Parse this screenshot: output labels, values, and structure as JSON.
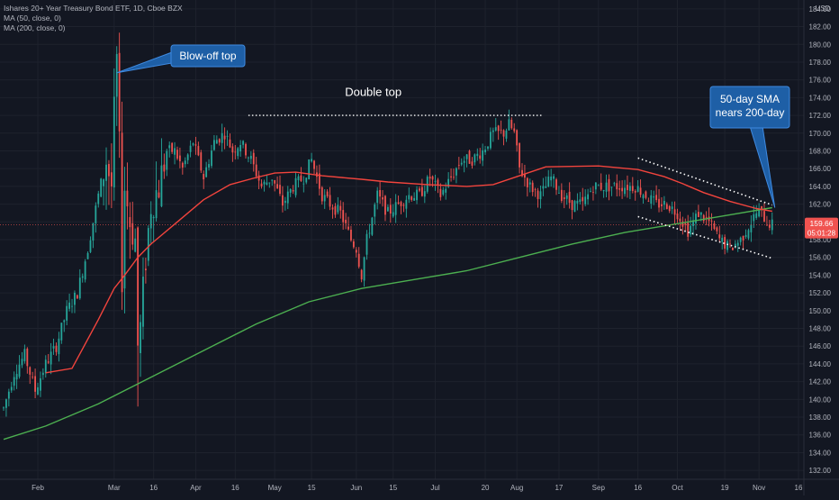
{
  "legend": {
    "title": "Ishares 20+ Year Treasury Bond ETF, 1D, Cboe BZX",
    "ma50": "MA (50, close, 0)",
    "ma200": "MA (200, close, 0)"
  },
  "currency": "USD",
  "price_tag": {
    "price": "159.66",
    "countdown": "05:01:28"
  },
  "colors": {
    "background": "#131722",
    "grid": "#1e222d",
    "up": "#26a69a",
    "down": "#ef5350",
    "ma50": "#f2443d",
    "ma200": "#4caf50",
    "callout": "#1e5fa6",
    "callout_border": "#3f8ae0",
    "price_tag": "#f05350"
  },
  "chart_data": {
    "type": "candlestick",
    "symbol": "Ishares 20+ Year Treasury Bond ETF",
    "timeframe": "1D",
    "exchange": "Cboe BZX",
    "y_ticks": [
      "132.00",
      "134.00",
      "136.00",
      "138.00",
      "140.00",
      "142.00",
      "144.00",
      "146.00",
      "148.00",
      "150.00",
      "152.00",
      "154.00",
      "156.00",
      "158.00",
      "160.00",
      "162.00",
      "164.00",
      "166.00",
      "168.00",
      "170.00",
      "172.00",
      "174.00",
      "176.00",
      "178.00",
      "180.00",
      "182.00",
      "184.00"
    ],
    "ylim": [
      131,
      185
    ],
    "x_ticks": [
      {
        "label": "Feb",
        "day": 27
      },
      {
        "label": "Mar",
        "day": 56
      },
      {
        "label": "16",
        "day": 71
      },
      {
        "label": "Apr",
        "day": 87
      },
      {
        "label": "16",
        "day": 102
      },
      {
        "label": "May",
        "day": 117
      },
      {
        "label": "15",
        "day": 131
      },
      {
        "label": "Jun",
        "day": 148
      },
      {
        "label": "15",
        "day": 162
      },
      {
        "label": "Jul",
        "day": 178
      },
      {
        "label": "20",
        "day": 197
      },
      {
        "label": "Aug",
        "day": 209
      },
      {
        "label": "17",
        "day": 225
      },
      {
        "label": "Sep",
        "day": 240
      },
      {
        "label": "16",
        "day": 255
      },
      {
        "label": "Oct",
        "day": 270
      },
      {
        "label": "19",
        "day": 288
      },
      {
        "label": "Nov",
        "day": 301
      },
      {
        "label": "16",
        "day": 316
      }
    ],
    "x_domain": [
      14,
      316
    ],
    "price_path": [
      [
        14,
        139
      ],
      [
        18,
        143
      ],
      [
        22,
        145
      ],
      [
        26,
        141
      ],
      [
        30,
        144
      ],
      [
        34,
        146
      ],
      [
        38,
        150
      ],
      [
        42,
        152
      ],
      [
        46,
        157
      ],
      [
        50,
        163
      ],
      [
        53,
        167
      ],
      [
        55,
        164
      ],
      [
        56,
        172
      ],
      [
        57,
        178
      ],
      [
        58,
        168
      ],
      [
        59,
        154
      ],
      [
        60,
        164
      ],
      [
        62,
        160
      ],
      [
        64,
        158
      ],
      [
        65,
        146
      ],
      [
        66,
        148
      ],
      [
        68,
        156
      ],
      [
        70,
        162
      ],
      [
        73,
        164
      ],
      [
        76,
        168
      ],
      [
        79,
        168
      ],
      [
        82,
        166
      ],
      [
        86,
        169
      ],
      [
        90,
        165
      ],
      [
        94,
        169
      ],
      [
        98,
        170
      ],
      [
        101,
        168
      ],
      [
        104,
        169
      ],
      [
        108,
        167
      ],
      [
        112,
        164
      ],
      [
        116,
        165
      ],
      [
        120,
        162
      ],
      [
        124,
        164
      ],
      [
        128,
        165
      ],
      [
        131,
        167
      ],
      [
        135,
        163
      ],
      [
        138,
        162
      ],
      [
        142,
        161
      ],
      [
        146,
        158
      ],
      [
        148,
        157
      ],
      [
        150,
        154
      ],
      [
        152,
        158
      ],
      [
        156,
        163
      ],
      [
        160,
        161
      ],
      [
        164,
        162
      ],
      [
        168,
        163
      ],
      [
        172,
        163
      ],
      [
        176,
        165
      ],
      [
        180,
        163
      ],
      [
        184,
        165
      ],
      [
        188,
        167
      ],
      [
        192,
        167
      ],
      [
        196,
        168
      ],
      [
        200,
        170
      ],
      [
        204,
        170
      ],
      [
        206,
        171
      ],
      [
        208,
        170
      ],
      [
        210,
        166
      ],
      [
        214,
        164
      ],
      [
        218,
        163
      ],
      [
        222,
        165
      ],
      [
        226,
        163
      ],
      [
        230,
        162
      ],
      [
        234,
        162
      ],
      [
        238,
        164
      ],
      [
        242,
        164
      ],
      [
        246,
        164
      ],
      [
        250,
        164
      ],
      [
        254,
        164
      ],
      [
        258,
        163
      ],
      [
        262,
        162
      ],
      [
        266,
        162
      ],
      [
        270,
        161
      ],
      [
        274,
        159
      ],
      [
        278,
        161
      ],
      [
        282,
        160
      ],
      [
        286,
        158
      ],
      [
        290,
        157
      ],
      [
        294,
        158
      ],
      [
        298,
        160
      ],
      [
        300,
        161
      ],
      [
        302,
        161
      ],
      [
        304,
        160
      ],
      [
        306,
        159.66
      ]
    ],
    "ma50": [
      [
        30,
        143
      ],
      [
        40,
        143.5
      ],
      [
        50,
        149
      ],
      [
        56,
        152.5
      ],
      [
        60,
        154
      ],
      [
        65,
        156
      ],
      [
        70,
        157.5
      ],
      [
        80,
        160
      ],
      [
        90,
        162.5
      ],
      [
        100,
        164.2
      ],
      [
        110,
        165
      ],
      [
        117,
        165.5
      ],
      [
        125,
        165.6
      ],
      [
        135,
        165.2
      ],
      [
        150,
        164.8
      ],
      [
        160,
        164.5
      ],
      [
        175,
        164.2
      ],
      [
        190,
        164.0
      ],
      [
        200,
        164.2
      ],
      [
        210,
        165.2
      ],
      [
        220,
        166.2
      ],
      [
        240,
        166.3
      ],
      [
        255,
        165.9
      ],
      [
        265,
        165.1
      ],
      [
        272,
        164.3
      ],
      [
        280,
        163.3
      ],
      [
        290,
        162.3
      ],
      [
        300,
        161.5
      ],
      [
        306,
        161.2
      ]
    ],
    "ma200": [
      [
        14,
        135.5
      ],
      [
        30,
        137
      ],
      [
        50,
        139.5
      ],
      [
        70,
        142.5
      ],
      [
        90,
        145.5
      ],
      [
        110,
        148.5
      ],
      [
        130,
        151
      ],
      [
        150,
        152.5
      ],
      [
        170,
        153.5
      ],
      [
        190,
        154.5
      ],
      [
        210,
        156
      ],
      [
        230,
        157.5
      ],
      [
        250,
        158.8
      ],
      [
        270,
        159.8
      ],
      [
        290,
        160.8
      ],
      [
        306,
        161.6
      ]
    ],
    "annotations": [
      {
        "text": "Blow-off top"
      },
      {
        "text": "Double top"
      },
      {
        "lines": [
          "50-day SMA",
          "nears 200-day"
        ]
      }
    ],
    "double_top_level": 172,
    "double_top_span": [
      107,
      219
    ],
    "wedge_upper": [
      [
        255,
        167.2
      ],
      [
        306,
        161.9
      ]
    ],
    "wedge_lower": [
      [
        255,
        160.6
      ],
      [
        306,
        155.9
      ]
    ],
    "current_price": 159.66
  }
}
